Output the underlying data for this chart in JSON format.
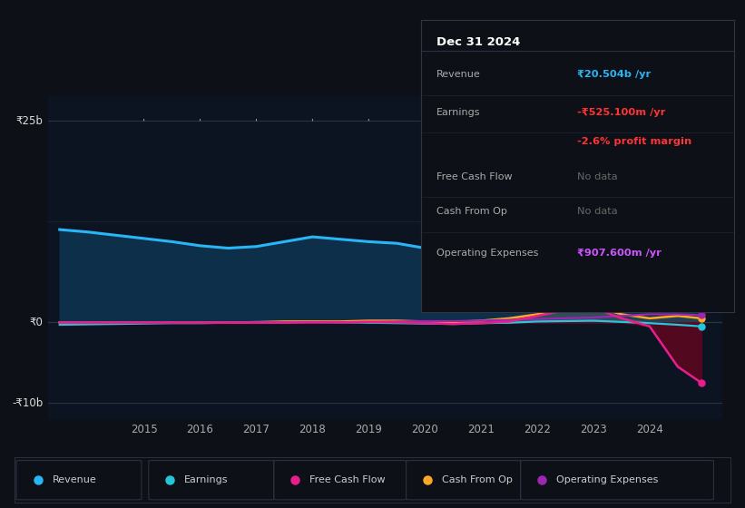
{
  "bg_color": "#0d1117",
  "plot_bg_color": "#0d1421",
  "grid_color": "#1e2d3d",
  "ylabel_top": "₹25b",
  "ylabel_mid": "₹0",
  "ylabel_bot": "-₹10b",
  "ylim": [
    -12,
    28
  ],
  "y_ticks": [
    25,
    0,
    -10
  ],
  "x_years": [
    2013.5,
    2014.0,
    2014.5,
    2015.0,
    2015.5,
    2016.0,
    2016.5,
    2017.0,
    2017.5,
    2018.0,
    2018.5,
    2019.0,
    2019.5,
    2020.0,
    2020.5,
    2021.0,
    2021.5,
    2022.0,
    2022.5,
    2023.0,
    2023.5,
    2024.0,
    2024.5,
    2024.92
  ],
  "revenue": [
    11.5,
    11.2,
    10.8,
    10.4,
    10.0,
    9.5,
    9.2,
    9.4,
    10.0,
    10.6,
    10.3,
    10.0,
    9.8,
    9.2,
    9.0,
    10.8,
    14.5,
    18.5,
    22.5,
    24.5,
    22.5,
    21.0,
    20.8,
    20.5
  ],
  "earnings": [
    -0.3,
    -0.25,
    -0.2,
    -0.15,
    -0.1,
    -0.1,
    -0.05,
    0.05,
    0.05,
    0.05,
    0.0,
    -0.05,
    -0.1,
    -0.15,
    -0.2,
    -0.1,
    -0.05,
    0.1,
    0.15,
    0.2,
    0.05,
    -0.1,
    -0.3,
    -0.5
  ],
  "free_cash_flow": [
    -0.05,
    -0.05,
    -0.05,
    -0.05,
    -0.05,
    -0.05,
    -0.05,
    -0.05,
    -0.05,
    0.0,
    0.0,
    0.05,
    0.0,
    -0.1,
    -0.2,
    -0.1,
    0.1,
    0.8,
    1.5,
    1.8,
    0.5,
    -0.5,
    -5.5,
    -7.5
  ],
  "cash_from_op": [
    0.0,
    0.0,
    0.0,
    0.0,
    0.0,
    0.0,
    0.0,
    0.0,
    0.1,
    0.1,
    0.1,
    0.2,
    0.2,
    0.1,
    0.05,
    0.2,
    0.5,
    1.0,
    1.8,
    2.0,
    1.0,
    0.5,
    0.8,
    0.5
  ],
  "op_expenses": [
    0.0,
    0.0,
    0.0,
    0.0,
    0.0,
    0.0,
    0.0,
    0.0,
    0.0,
    0.0,
    0.0,
    0.05,
    0.1,
    0.15,
    0.15,
    0.2,
    0.3,
    0.4,
    0.5,
    0.6,
    0.8,
    1.0,
    1.0,
    0.9
  ],
  "revenue_color": "#29b6f6",
  "revenue_fill_color": "#0d2f4a",
  "earnings_color": "#26c6da",
  "free_cash_flow_color": "#e91e8c",
  "cash_from_op_color": "#ffa726",
  "op_expenses_color": "#9c27b0",
  "legend_colors": [
    "#29b6f6",
    "#26c6da",
    "#e91e8c",
    "#ffa726",
    "#9c27b0"
  ],
  "legend_labels": [
    "Revenue",
    "Earnings",
    "Free Cash Flow",
    "Cash From Op",
    "Operating Expenses"
  ],
  "x_tick_labels": [
    "2015",
    "2016",
    "2017",
    "2018",
    "2019",
    "2020",
    "2021",
    "2022",
    "2023",
    "2024"
  ],
  "x_tick_positions": [
    2015,
    2016,
    2017,
    2018,
    2019,
    2020,
    2021,
    2022,
    2023,
    2024
  ],
  "info_box": {
    "title": "Dec 31 2024",
    "rows": [
      {
        "label": "Revenue",
        "value": "₹20.504b /yr",
        "lcolor": "#aaaaaa",
        "vcolor": "#29b6f6"
      },
      {
        "label": "Earnings",
        "value": "-₹525.100m /yr",
        "lcolor": "#aaaaaa",
        "vcolor": "#ff3333"
      },
      {
        "label": "",
        "value": "-2.6% profit margin",
        "lcolor": "#aaaaaa",
        "vcolor": "#ff3333"
      },
      {
        "label": "Free Cash Flow",
        "value": "No data",
        "lcolor": "#aaaaaa",
        "vcolor": "#666666"
      },
      {
        "label": "Cash From Op",
        "value": "No data",
        "lcolor": "#aaaaaa",
        "vcolor": "#666666"
      },
      {
        "label": "Operating Expenses",
        "value": "₹907.600m /yr",
        "lcolor": "#aaaaaa",
        "vcolor": "#cc55ff"
      }
    ]
  }
}
